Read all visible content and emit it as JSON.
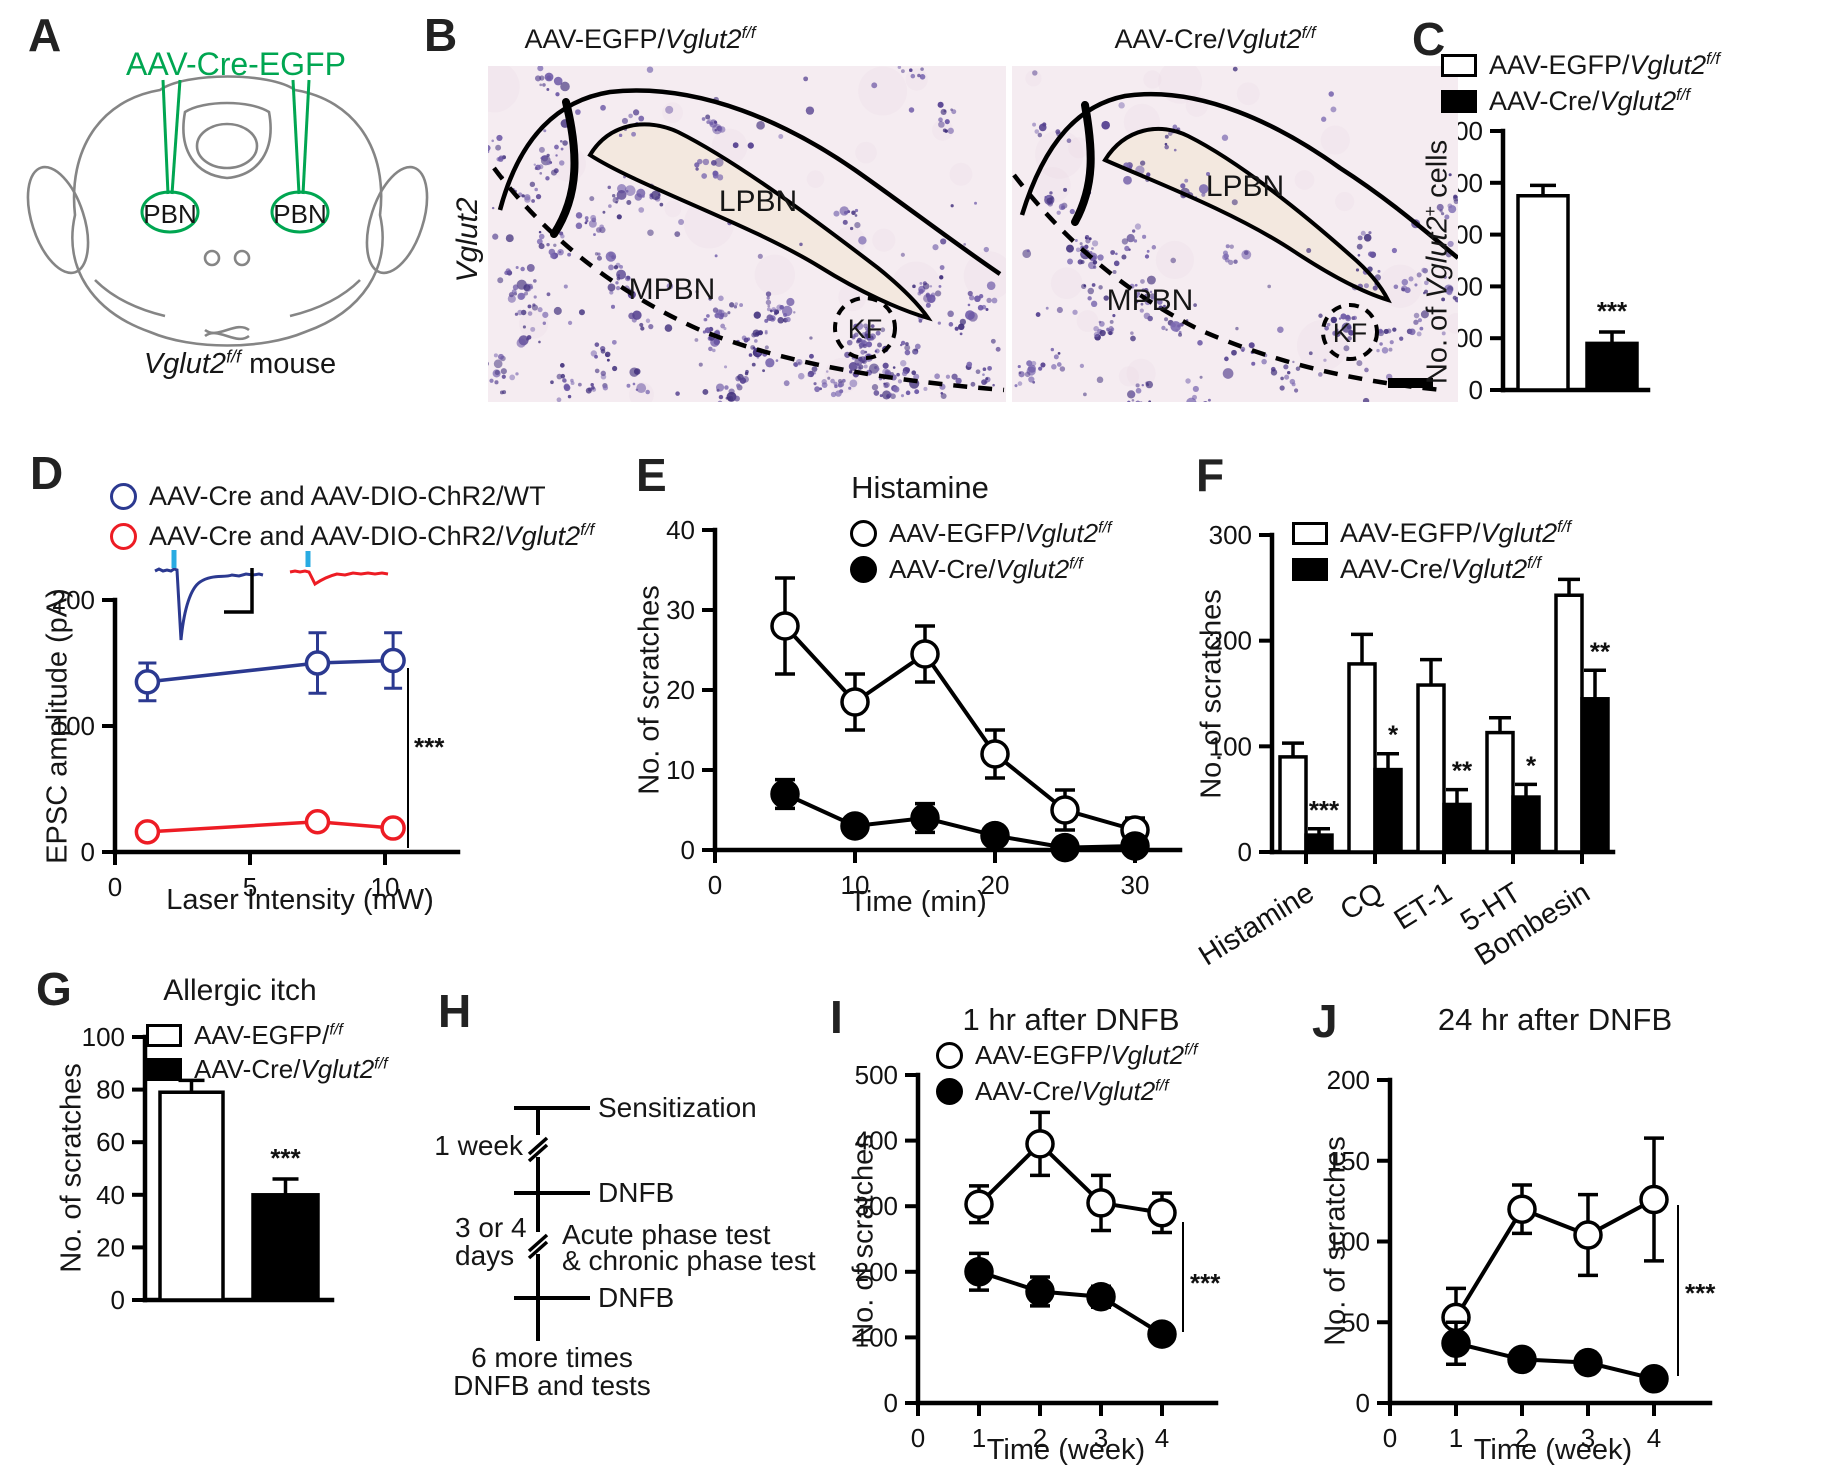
{
  "colors": {
    "green": "#00A651",
    "navy": "#2B3990",
    "red": "#ED1C24",
    "cyan": "#29ABE2",
    "purple": "#4F3A8E",
    "histology_bg": "#F5ECF1"
  },
  "shared_legend": {
    "egfp": {
      "prefix": "AAV-EGFP/",
      "gene": "Vglut2",
      "sup": "f/f"
    },
    "cre": {
      "prefix": "AAV-Cre/",
      "gene": "Vglut2",
      "sup": "f/f"
    }
  },
  "panels": {
    "A": {
      "label": "A",
      "injection_label": "AAV-Cre-EGFP",
      "pbn_left": "PBN",
      "pbn_right": "PBN",
      "caption_gene": "Vglut2",
      "caption_sup": "f/f",
      "caption_rest": " mouse"
    },
    "B": {
      "label": "B",
      "side_label": "Vglut2",
      "left": {
        "lpbn": "LPBN",
        "mpbn": "MPBN",
        "kf": "KF"
      },
      "right": {
        "lpbn": "LPBN",
        "mpbn": "MPBN",
        "kf": "KF"
      }
    },
    "C": {
      "label": "C",
      "ylabel_prefix": "No. of ",
      "ylabel_gene": "Vglut2",
      "ylabel_sup": "+",
      "ylabel_rest": " cells"
    },
    "D": {
      "label": "D",
      "legend_wt": "AAV-Cre and AAV-DIO-ChR2/WT",
      "legend_ko_prefix": "AAV-Cre and AAV-DIO-ChR2/",
      "legend_ko_gene": "Vglut2",
      "legend_ko_sup": "f/f",
      "ylabel": "EPSC amplitude (pA)",
      "xlabel": "Laser Intensity (mW)"
    },
    "E": {
      "label": "E",
      "title": "Histamine",
      "ylabel": "No. of scratches",
      "xlabel": "Time (min)"
    },
    "F": {
      "label": "F",
      "ylabel": "No. of scratches"
    },
    "G": {
      "label": "G",
      "title": "Allergic itch",
      "ylabel": "No. of scratches"
    },
    "H": {
      "label": "H",
      "sensitization": "Sensitization",
      "interval1": "1 week",
      "dnfb1": "DNFB",
      "interval2_line1": "3 or 4",
      "interval2_line2": "days",
      "acute": "Acute phase test",
      "chronic": "& chronic phase test",
      "dnfb2": "DNFB",
      "footer_line1": "6 more times",
      "footer_line2": "DNFB and tests"
    },
    "I": {
      "label": "I",
      "title": "1 hr after DNFB",
      "ylabel": "No. of scratches",
      "xlabel": "Time (week)"
    },
    "J": {
      "label": "J",
      "title": "24 hr after DNFB",
      "ylabel": "No. of scratches",
      "xlabel": "Time (week)"
    }
  },
  "chart_data": [
    {
      "id": "C",
      "type": "bar",
      "categories": [
        "AAV-EGFP/Vglut2 f/f",
        "AAV-Cre/Vglut2 f/f"
      ],
      "values": [
        375,
        90
      ],
      "errors": [
        20,
        22
      ],
      "sig": [
        null,
        "***"
      ],
      "title": "",
      "xlabel": "",
      "ylabel": "No. of Vglut2+ cells",
      "ylim": [
        0,
        500
      ],
      "yticks": [
        0,
        100,
        200,
        300,
        400,
        500
      ]
    },
    {
      "id": "D",
      "type": "line",
      "x": [
        1.2,
        7.5,
        10.3
      ],
      "series": [
        {
          "name": "AAV-Cre and AAV-DIO-ChR2/WT",
          "color": "#2B3990",
          "marker": "open",
          "values": [
            135,
            150,
            152
          ],
          "errors": [
            15,
            24,
            22
          ]
        },
        {
          "name": "AAV-Cre and AAV-DIO-ChR2/Vglut2 f/f",
          "color": "#ED1C24",
          "marker": "open",
          "values": [
            16,
            24,
            19
          ],
          "errors": [
            4,
            5,
            4
          ]
        }
      ],
      "sig": "***",
      "title": "",
      "xlabel": "Laser Intensity (mW)",
      "ylabel": "EPSC amplitude (pA)",
      "xlim": [
        0,
        12
      ],
      "ylim": [
        0,
        200
      ],
      "xticks": [
        0,
        5,
        10
      ],
      "yticks": [
        0,
        100,
        200
      ]
    },
    {
      "id": "E",
      "type": "line",
      "x": [
        5,
        10,
        15,
        20,
        25,
        30
      ],
      "series": [
        {
          "name": "AAV-EGFP/Vglut2 f/f",
          "color": "#000000",
          "marker": "open",
          "values": [
            28,
            18.5,
            24.5,
            12,
            5,
            2.5
          ],
          "errors": [
            6,
            3.5,
            3.5,
            3,
            2.5,
            1.5
          ]
        },
        {
          "name": "AAV-Cre/Vglut2 f/f",
          "color": "#000000",
          "marker": "filled",
          "values": [
            7,
            3,
            4,
            1.8,
            0.3,
            0.5
          ],
          "errors": [
            1.8,
            1,
            1.8,
            0.8,
            0,
            0
          ]
        }
      ],
      "title": "Histamine",
      "xlabel": "Time (min)",
      "ylabel": "No. of scratches",
      "xlim": [
        0,
        33
      ],
      "ylim": [
        0,
        40
      ],
      "xticks": [
        0,
        10,
        20,
        30
      ],
      "yticks": [
        0,
        10,
        20,
        30,
        40
      ]
    },
    {
      "id": "F",
      "type": "grouped-bar",
      "categories": [
        "Histamine",
        "CQ",
        "ET-1",
        "5-HT",
        "Bombesin"
      ],
      "series": [
        {
          "name": "AAV-EGFP/Vglut2 f/f",
          "fill": "white",
          "values": [
            90,
            178,
            158,
            113,
            243
          ],
          "errors": [
            13,
            28,
            24,
            14,
            15
          ]
        },
        {
          "name": "AAV-Cre/Vglut2 f/f",
          "fill": "black",
          "values": [
            16,
            78,
            45,
            52,
            145
          ],
          "errors": [
            6,
            15,
            14,
            12,
            27
          ]
        }
      ],
      "sig": [
        "***",
        "*",
        "**",
        "*",
        "**"
      ],
      "title": "",
      "xlabel": "",
      "ylabel": "No. of scratches",
      "ylim": [
        0,
        300
      ],
      "yticks": [
        0,
        100,
        200,
        300
      ]
    },
    {
      "id": "G",
      "type": "bar",
      "categories": [
        "AAV-EGFP/Vglut2 f/f",
        "AAV-Cre/Vglut2 f/f"
      ],
      "values": [
        79,
        40
      ],
      "errors": [
        4.5,
        6
      ],
      "sig": [
        null,
        "***"
      ],
      "title": "Allergic itch",
      "xlabel": "",
      "ylabel": "No. of scratches",
      "ylim": [
        0,
        100
      ],
      "yticks": [
        0,
        20,
        40,
        60,
        80,
        100
      ]
    },
    {
      "id": "I",
      "type": "line",
      "x": [
        1,
        2,
        3,
        4
      ],
      "series": [
        {
          "name": "AAV-EGFP/Vglut2 f/f",
          "color": "#000000",
          "marker": "open",
          "values": [
            303,
            395,
            305,
            290
          ],
          "errors": [
            28,
            48,
            42,
            30
          ]
        },
        {
          "name": "AAV-Cre/Vglut2 f/f",
          "color": "#000000",
          "marker": "filled",
          "values": [
            200,
            170,
            162,
            105
          ],
          "errors": [
            28,
            22,
            16,
            8
          ]
        }
      ],
      "sig": "***",
      "title": "1 hr after DNFB",
      "xlabel": "Time (week)",
      "ylabel": "No. of scratches",
      "xlim": [
        0,
        4.8
      ],
      "ylim": [
        0,
        500
      ],
      "xticks": [
        0,
        1,
        2,
        3,
        4
      ],
      "yticks": [
        0,
        100,
        200,
        300,
        400,
        500
      ]
    },
    {
      "id": "J",
      "type": "line",
      "x": [
        1,
        2,
        3,
        4
      ],
      "series": [
        {
          "name": "AAV-EGFP/Vglut2 f/f",
          "color": "#000000",
          "marker": "open",
          "values": [
            53,
            120,
            104,
            126
          ],
          "errors": [
            18,
            15,
            25,
            38
          ]
        },
        {
          "name": "AAV-Cre/Vglut2 f/f",
          "color": "#000000",
          "marker": "filled",
          "values": [
            37,
            27,
            25,
            15
          ],
          "errors": [
            13,
            4,
            4,
            4
          ]
        }
      ],
      "sig": "***",
      "title": "24 hr after DNFB",
      "xlabel": "Time (week)",
      "ylabel": "No. of scratches",
      "xlim": [
        0,
        4.8
      ],
      "ylim": [
        0,
        200
      ],
      "xticks": [
        0,
        1,
        2,
        3,
        4
      ],
      "yticks": [
        0,
        50,
        100,
        150,
        200
      ]
    }
  ]
}
